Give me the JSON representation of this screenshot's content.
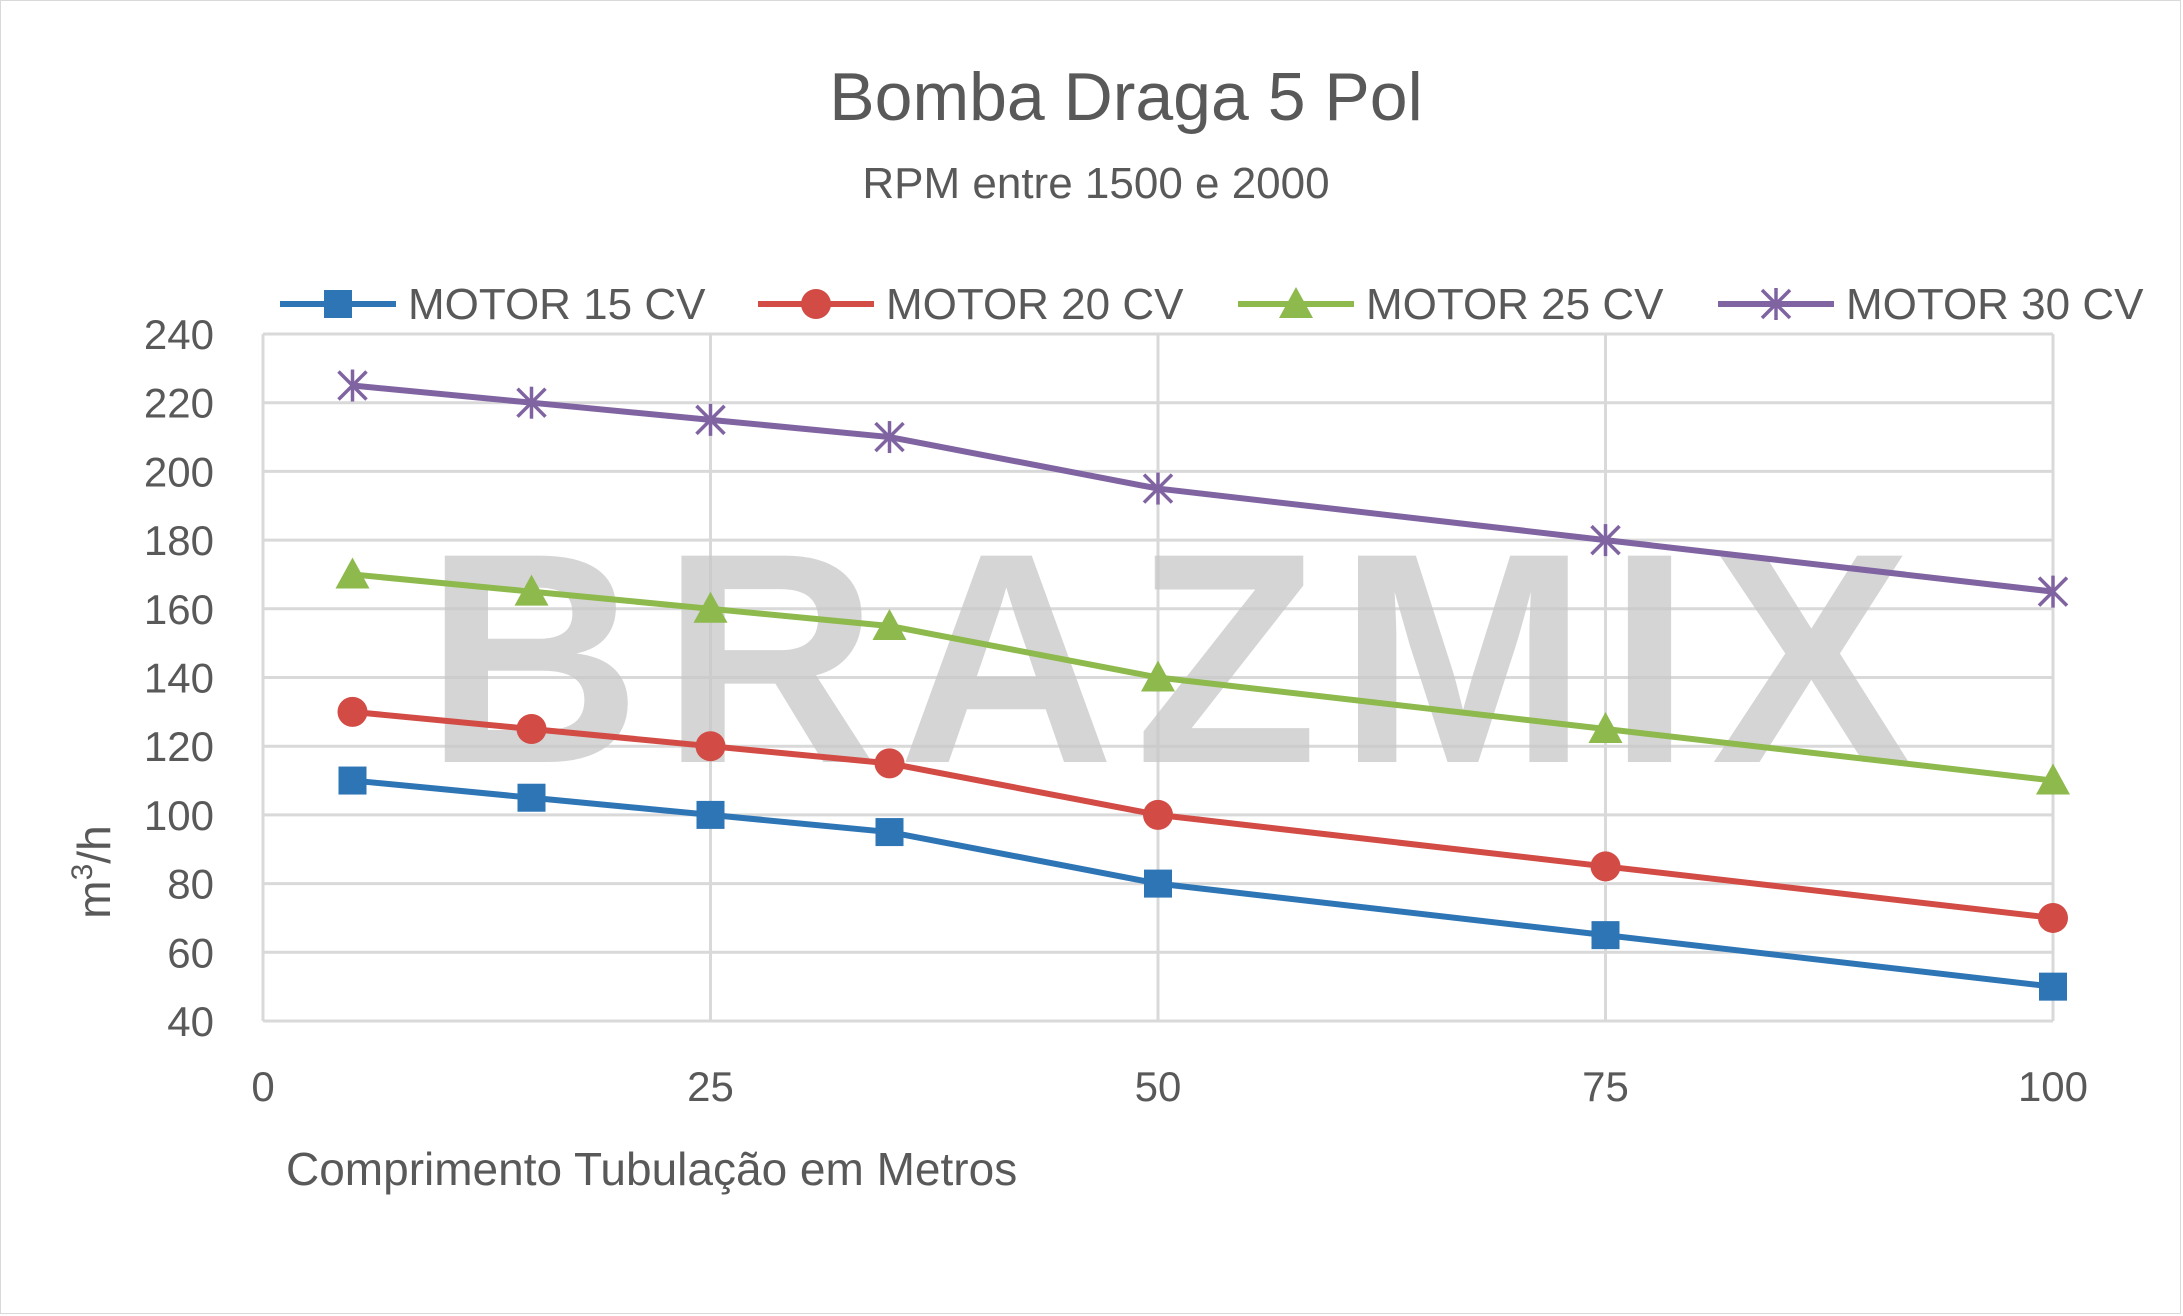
{
  "chart_data": {
    "type": "line",
    "title": "Bomba Draga 5 Pol",
    "subtitle": "RPM entre 1500 e 2000",
    "xlabel": "Comprimento Tubulação em Metros",
    "ylabel_base": "m",
    "ylabel_sup": "3",
    "ylabel_tail": "/h",
    "xlim": [
      0,
      100
    ],
    "ylim": [
      40,
      240
    ],
    "x_ticks": [
      0,
      25,
      50,
      75,
      100
    ],
    "y_ticks": [
      40,
      60,
      80,
      100,
      120,
      140,
      160,
      180,
      200,
      220,
      240
    ],
    "grid": true,
    "legend_position": "top",
    "watermark": "BRAZMIX",
    "x": [
      5,
      15,
      25,
      35,
      50,
      75,
      100
    ],
    "series": [
      {
        "name": "MOTOR 15 CV",
        "color": "#2e75b6",
        "marker": "square",
        "values": [
          110,
          105,
          100,
          95,
          80,
          65,
          50
        ]
      },
      {
        "name": "MOTOR 20 CV",
        "color": "#d24b45",
        "marker": "circle",
        "values": [
          130,
          125,
          120,
          115,
          100,
          85,
          70
        ]
      },
      {
        "name": "MOTOR 25 CV",
        "color": "#8db94d",
        "marker": "triangle",
        "values": [
          170,
          165,
          160,
          155,
          140,
          125,
          110
        ]
      },
      {
        "name": "MOTOR 30 CV",
        "color": "#8064a2",
        "marker": "star",
        "values": [
          225,
          220,
          215,
          210,
          195,
          180,
          165
        ]
      }
    ]
  }
}
